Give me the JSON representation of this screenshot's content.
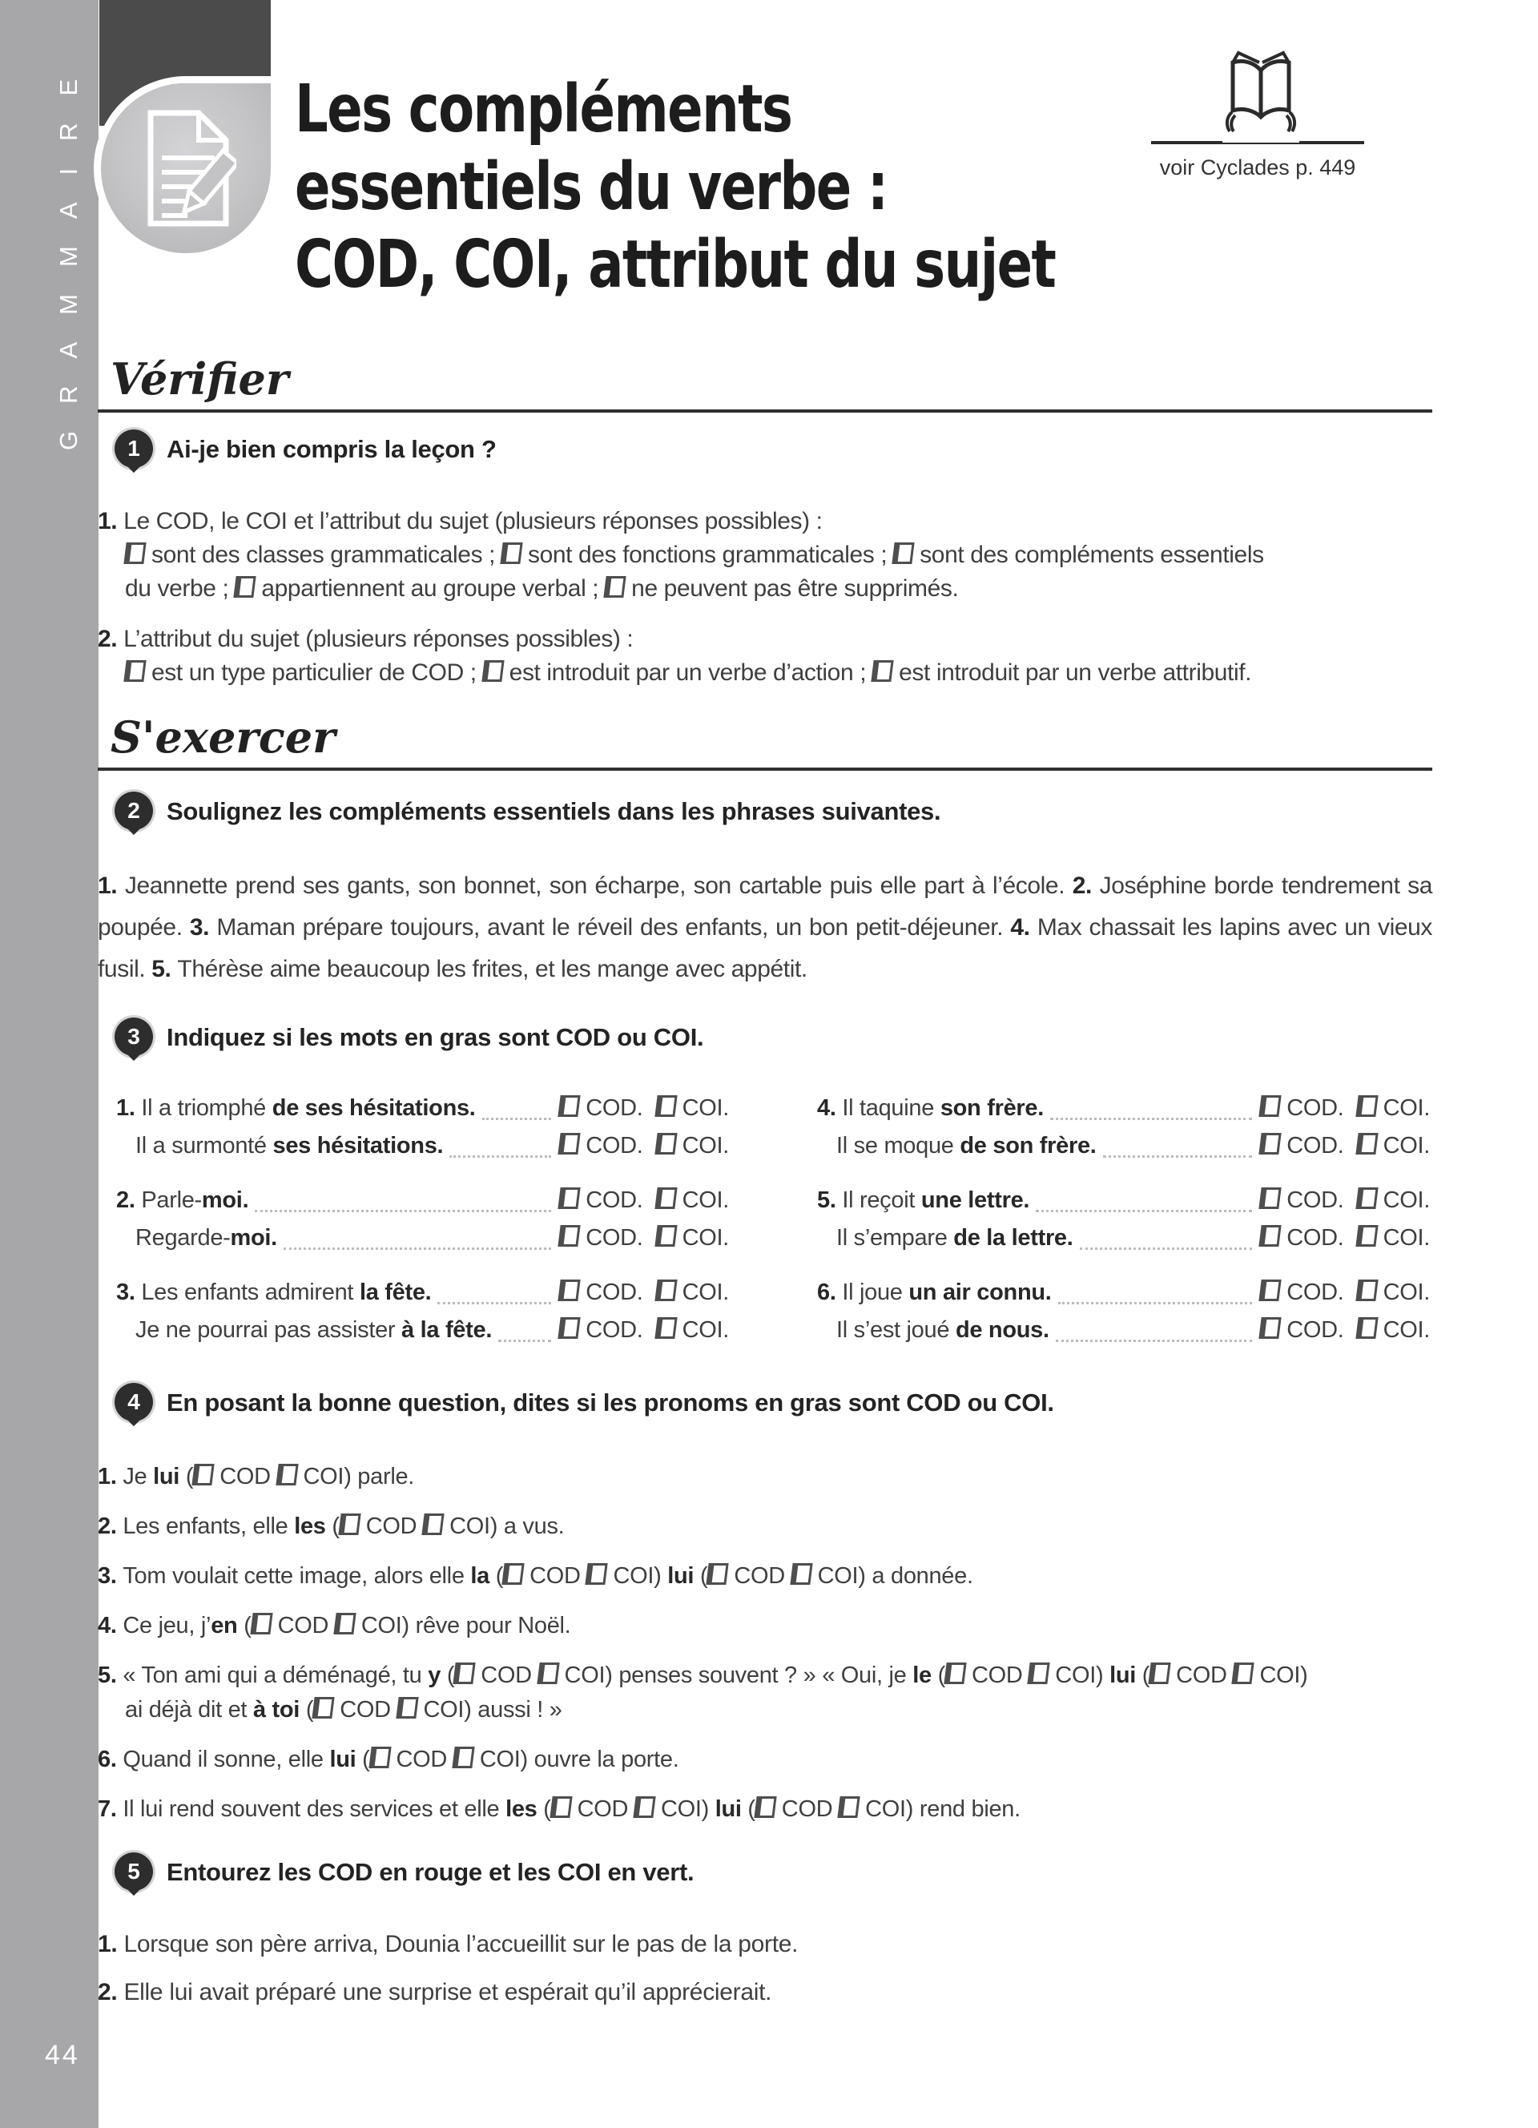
{
  "colors": {
    "sidebar_gray": "#a7a7aa",
    "header_dark": "#4b4b4b",
    "badge_dark": "#2d2d2d",
    "body_text": "#3f3f3f",
    "title_text": "#1d1d1d",
    "leader_dots": "#bcbcbc",
    "icon_silver": "#c3c3c6"
  },
  "sidebar": {
    "vertical_label": "GRAMMAIRE",
    "page_number": "44"
  },
  "header": {
    "title_lines": [
      "Les compléments",
      "essentiels du verbe :",
      "COD, COI, attribut du sujet"
    ],
    "reference": "voir Cyclades p. 449",
    "lesson_icon": "document-pencil-icon",
    "reference_icon": "open-book-hands-icon"
  },
  "sections": {
    "verify_heading": "Vérifier",
    "practice_heading": "S'exercer"
  },
  "exercises": [
    {
      "number": "1",
      "title": "Ai-je bien compris la leçon ?",
      "questions": [
        {
          "segments": [
            {
              "b": "1. "
            },
            {
              "t": "Le COD, le COI et l’attribut du sujet (plusieurs réponses possibles) :"
            },
            {
              "nl": 1
            },
            {
              "x": ""
            },
            {
              "t": "sont des classes grammaticales ; "
            },
            {
              "x": ""
            },
            {
              "t": "sont des fonctions grammaticales ; "
            },
            {
              "x": ""
            },
            {
              "t": "sont des compléments essentiels"
            },
            {
              "nl": 1
            },
            {
              "t": "du verbe ; "
            },
            {
              "x": ""
            },
            {
              "t": "appartiennent au groupe verbal ; "
            },
            {
              "x": ""
            },
            {
              "t": "ne peuvent pas être supprimés."
            }
          ]
        },
        {
          "segments": [
            {
              "b": "2. "
            },
            {
              "t": "L’attribut du sujet (plusieurs réponses possibles) :"
            },
            {
              "nl": 1
            },
            {
              "x": ""
            },
            {
              "t": "est un type particulier de COD ; "
            },
            {
              "x": ""
            },
            {
              "t": "est introduit par un verbe d’action ; "
            },
            {
              "x": ""
            },
            {
              "t": "est introduit par un verbe attributif."
            }
          ]
        }
      ]
    },
    {
      "number": "2",
      "title": "Soulignez les compléments essentiels dans les phrases suivantes.",
      "paragraph": [
        {
          "b": "1. "
        },
        {
          "t": "Jeannette prend ses gants, son bonnet, son écharpe, son cartable puis elle part à l’école. "
        },
        {
          "b": "2. "
        },
        {
          "t": "Joséphine borde tendrement sa poupée. "
        },
        {
          "b": "3. "
        },
        {
          "t": "Maman prépare toujours, avant le réveil des enfants, un bon petit-déjeuner. "
        },
        {
          "b": "4. "
        },
        {
          "t": "Max chassait les lapins avec un vieux fusil. "
        },
        {
          "b": "5. "
        },
        {
          "t": "Thérèse aime beaucoup les frites, et les mange avec appétit."
        }
      ]
    },
    {
      "number": "3",
      "title": "Indiquez si les mots en gras sont COD ou COI.",
      "columns": {
        "left": [
          {
            "lines": [
              {
                "segments": [
                  {
                    "b": "1. "
                  },
                  {
                    "t": "Il a triomphé "
                  },
                  {
                    "b": "de ses hésitations."
                  }
                ],
                "boxes": [
                  "COD.",
                  "COI."
                ]
              },
              {
                "segments": [
                  {
                    "t": "Il a surmonté "
                  },
                  {
                    "b": "ses hésitations."
                  }
                ],
                "boxes": [
                  "COD.",
                  "COI."
                ]
              }
            ]
          },
          {
            "lines": [
              {
                "segments": [
                  {
                    "b": "2. "
                  },
                  {
                    "t": "Parle-"
                  },
                  {
                    "b": "moi."
                  }
                ],
                "boxes": [
                  "COD.",
                  "COI."
                ]
              },
              {
                "segments": [
                  {
                    "t": "Regarde-"
                  },
                  {
                    "b": "moi."
                  }
                ],
                "boxes": [
                  "COD.",
                  "COI."
                ]
              }
            ]
          },
          {
            "lines": [
              {
                "segments": [
                  {
                    "b": "3. "
                  },
                  {
                    "t": "Les enfants admirent "
                  },
                  {
                    "b": "la fête."
                  }
                ],
                "boxes": [
                  "COD.",
                  "COI."
                ]
              },
              {
                "segments": [
                  {
                    "t": "Je ne pourrai pas assister "
                  },
                  {
                    "b": "à la fête."
                  }
                ],
                "boxes": [
                  "COD.",
                  "COI."
                ]
              }
            ]
          }
        ],
        "right": [
          {
            "lines": [
              {
                "segments": [
                  {
                    "b": "4. "
                  },
                  {
                    "t": "Il taquine "
                  },
                  {
                    "b": "son frère."
                  }
                ],
                "boxes": [
                  "COD.",
                  "COI."
                ]
              },
              {
                "segments": [
                  {
                    "t": "Il se moque "
                  },
                  {
                    "b": "de son frère."
                  }
                ],
                "boxes": [
                  "COD.",
                  "COI."
                ]
              }
            ]
          },
          {
            "lines": [
              {
                "segments": [
                  {
                    "b": "5. "
                  },
                  {
                    "t": "Il reçoit "
                  },
                  {
                    "b": "une lettre."
                  }
                ],
                "boxes": [
                  "COD.",
                  "COI."
                ]
              },
              {
                "segments": [
                  {
                    "t": "Il s’empare "
                  },
                  {
                    "b": "de la lettre."
                  }
                ],
                "boxes": [
                  "COD.",
                  "COI."
                ]
              }
            ]
          },
          {
            "lines": [
              {
                "segments": [
                  {
                    "b": "6. "
                  },
                  {
                    "t": "Il joue "
                  },
                  {
                    "b": "un air connu."
                  }
                ],
                "boxes": [
                  "COD.",
                  "COI."
                ]
              },
              {
                "segments": [
                  {
                    "t": "Il s’est joué "
                  },
                  {
                    "b": "de nous."
                  }
                ],
                "boxes": [
                  "COD.",
                  "COI."
                ]
              }
            ]
          }
        ]
      }
    },
    {
      "number": "4",
      "title": "En posant la bonne question, dites si les pronoms en gras sont COD ou COI.",
      "items": [
        [
          {
            "b": "1. "
          },
          {
            "t": "Je "
          },
          {
            "b": "lui"
          },
          {
            "t": " ("
          },
          {
            "x": "COD"
          },
          {
            "t": " "
          },
          {
            "x": "COI"
          },
          {
            "t": ") parle."
          }
        ],
        [
          {
            "b": "2. "
          },
          {
            "t": "Les enfants, elle "
          },
          {
            "b": "les"
          },
          {
            "t": " ("
          },
          {
            "x": "COD"
          },
          {
            "t": " "
          },
          {
            "x": "COI"
          },
          {
            "t": ") a vus."
          }
        ],
        [
          {
            "b": "3. "
          },
          {
            "t": "Tom voulait cette image, alors elle "
          },
          {
            "b": "la"
          },
          {
            "t": " ("
          },
          {
            "x": "COD"
          },
          {
            "t": " "
          },
          {
            "x": "COI"
          },
          {
            "t": ") "
          },
          {
            "b": "lui"
          },
          {
            "t": " ("
          },
          {
            "x": "COD"
          },
          {
            "t": " "
          },
          {
            "x": "COI"
          },
          {
            "t": ") a donnée."
          }
        ],
        [
          {
            "b": "4. "
          },
          {
            "t": "Ce jeu, j’"
          },
          {
            "b": "en"
          },
          {
            "t": " ("
          },
          {
            "x": "COD"
          },
          {
            "t": " "
          },
          {
            "x": "COI"
          },
          {
            "t": ") rêve pour Noël."
          }
        ],
        [
          {
            "b": "5. "
          },
          {
            "t": "« Ton ami qui a déménagé, tu "
          },
          {
            "b": "y"
          },
          {
            "t": " ("
          },
          {
            "x": "COD"
          },
          {
            "t": " "
          },
          {
            "x": "COI"
          },
          {
            "t": ") penses souvent ? » « Oui, je "
          },
          {
            "b": "le"
          },
          {
            "t": " ("
          },
          {
            "x": "COD"
          },
          {
            "t": " "
          },
          {
            "x": "COI"
          },
          {
            "t": ") "
          },
          {
            "b": "lui"
          },
          {
            "t": " ("
          },
          {
            "x": "COD"
          },
          {
            "t": " "
          },
          {
            "x": "COI"
          },
          {
            "t": ")"
          },
          {
            "nl": 1
          },
          {
            "t": "ai déjà dit et "
          },
          {
            "b": "à toi"
          },
          {
            "t": " ("
          },
          {
            "x": "COD"
          },
          {
            "t": " "
          },
          {
            "x": "COI"
          },
          {
            "t": ") aussi ! »"
          }
        ],
        [
          {
            "b": "6. "
          },
          {
            "t": "Quand il sonne, elle "
          },
          {
            "b": "lui"
          },
          {
            "t": " ("
          },
          {
            "x": "COD"
          },
          {
            "t": " "
          },
          {
            "x": "COI"
          },
          {
            "t": ") ouvre la porte."
          }
        ],
        [
          {
            "b": "7. "
          },
          {
            "t": "Il lui rend souvent des services et elle "
          },
          {
            "b": "les"
          },
          {
            "t": " ("
          },
          {
            "x": "COD"
          },
          {
            "t": " "
          },
          {
            "x": "COI"
          },
          {
            "t": ") "
          },
          {
            "b": "lui"
          },
          {
            "t": " ("
          },
          {
            "x": "COD"
          },
          {
            "t": " "
          },
          {
            "x": "COI"
          },
          {
            "t": ") rend bien."
          }
        ]
      ]
    },
    {
      "number": "5",
      "title": "Entourez les COD en rouge et les COI en vert.",
      "items": [
        [
          {
            "b": "1. "
          },
          {
            "t": "Lorsque son père arriva, Dounia l’accueillit sur le pas de la porte."
          }
        ],
        [
          {
            "b": "2. "
          },
          {
            "t": "Elle lui avait préparé une surprise et espérait qu’il apprécierait."
          }
        ]
      ]
    }
  ]
}
